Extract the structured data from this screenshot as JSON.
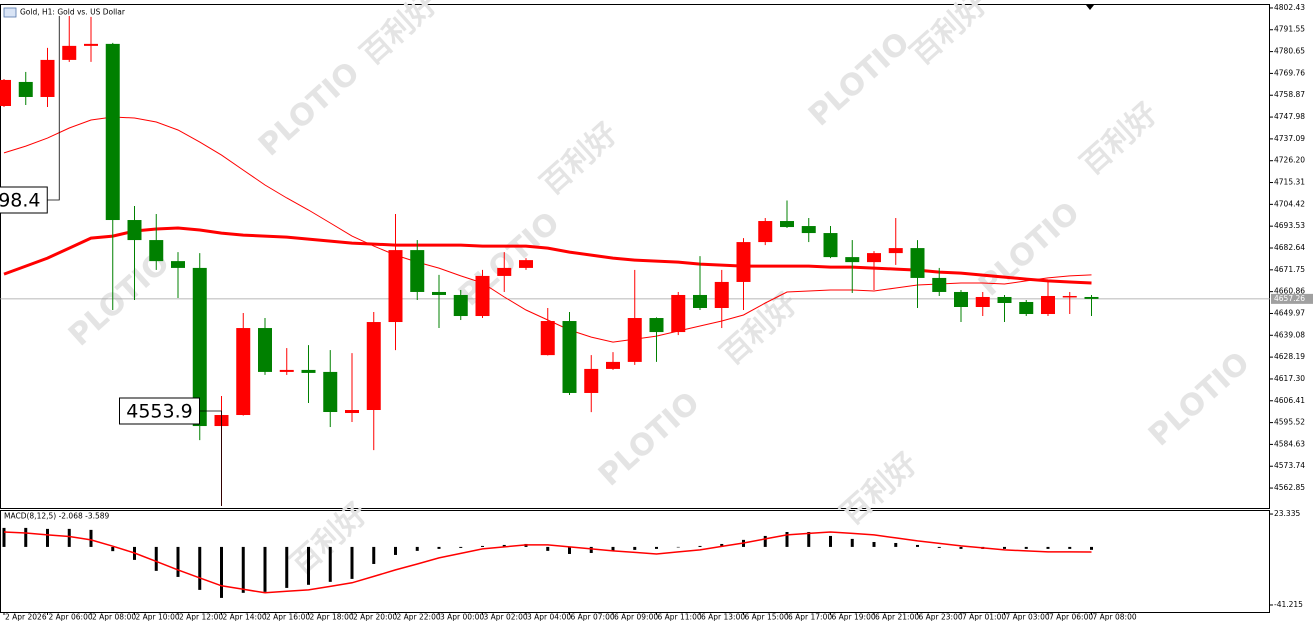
{
  "chart_data": {
    "type": "candlestick",
    "title": "Gold, H1: Gold vs. US Dollar",
    "watermarks": [
      "PLOTIO",
      "百利好"
    ],
    "up_color": "#ff0000",
    "down_color": "#008000",
    "categories": [
      "2 Apr 2026",
      null,
      "2 Apr 06:00",
      null,
      "2 Apr 08:00",
      null,
      "2 Apr 10:00",
      null,
      "2 Apr 12:00",
      null,
      "2 Apr 14:00",
      null,
      "2 Apr 16:00",
      null,
      "2 Apr 18:00",
      null,
      "2 Apr 20:00",
      null,
      "2 Apr 22:00",
      null,
      "3 Apr 00:00",
      null,
      "3 Apr 02:00",
      null,
      "3 Apr 04:00",
      null,
      "6 Apr 07:00",
      null,
      "6 Apr 09:00",
      null,
      "6 Apr 11:00",
      null,
      "6 Apr 13:00",
      null,
      "6 Apr 15:00",
      null,
      "6 Apr 17:00",
      null,
      "6 Apr 19:00",
      null,
      "6 Apr 21:00",
      null,
      "6 Apr 23:00",
      null,
      "7 Apr 01:00",
      null,
      "7 Apr 03:00",
      null,
      "7 Apr 06:00",
      null,
      "7 Apr 08:00"
    ],
    "open": [
      4753.5,
      4765.5,
      4758.0,
      4776.5,
      4783.5,
      4784.5,
      4696.6,
      4686.6,
      4676.1,
      4672.7,
      4593.8,
      4599.3,
      4642.7,
      4620.8,
      4621.8,
      4620.8,
      4600.3,
      4601.8,
      4645.7,
      4681.6,
      4660.7,
      4659.2,
      4648.7,
      4668.7,
      4672.7,
      4629.2,
      4646.2,
      4610.3,
      4622.3,
      4625.8,
      4647.7,
      4640.7,
      4659.2,
      4652.7,
      4665.7,
      4685.6,
      4696.1,
      4693.6,
      4690.1,
      4678.1,
      4675.6,
      4680.1,
      4682.6,
      4667.7,
      4660.7,
      4653.2,
      4658.2,
      4655.7,
      4649.7,
      4658.2,
      4658.2
    ],
    "high": [
      4767,
      4770.5,
      4782.5,
      4798.4,
      4798,
      4785,
      4703.6,
      4699.6,
      4680.6,
      4680.1,
      4608.8,
      4650.2,
      4647.7,
      4632.7,
      4634.2,
      4631.7,
      4630.2,
      4650.7,
      4699.6,
      4686.6,
      4669.2,
      4661.7,
      4671.7,
      4680.6,
      4677.6,
      4652.7,
      4650.7,
      4629.2,
      4630.7,
      4671.7,
      4648,
      4660.7,
      4678.6,
      4671.7,
      4687.6,
      4697.6,
      4706.32,
      4697.6,
      4693.6,
      4686.6,
      4681.1,
      4697.6,
      4686.6,
      4672.7,
      4661.7,
      4660.7,
      4659.2,
      4656.7,
      4666.7,
      4660.7,
      4659.2
    ],
    "low": [
      4753,
      4754.0,
      4753.0,
      4775.5,
      4775.5,
      4651.7,
      4656.7,
      4671.7,
      4657.7,
      4586.8,
      4553.9,
      4599,
      4619.3,
      4619.3,
      4605.3,
      4593.3,
      4595.8,
      4581.8,
      4631.7,
      4656.7,
      4642.7,
      4646.7,
      4647.7,
      4660.7,
      4671.7,
      4629,
      4609.3,
      4600.74,
      4621.8,
      4624.3,
      4625.8,
      4639.2,
      4651.7,
      4642.7,
      4651.7,
      4684.1,
      4692.6,
      4685.6,
      4677.6,
      4660.2,
      4661.7,
      4674.2,
      4652.7,
      4658.7,
      4645.7,
      4648.7,
      4645.7,
      4648.7,
      4648.7,
      4649.7,
      4648.7
    ],
    "close": [
      4766.5,
      4758.0,
      4776.5,
      4783.5,
      4784.5,
      4696.6,
      4686.6,
      4676.1,
      4672.7,
      4593.8,
      4599.3,
      4642.7,
      4620.8,
      4621.8,
      4620.3,
      4600.8,
      4601.8,
      4645.7,
      4681.6,
      4660.7,
      4659.2,
      4648.7,
      4668.7,
      4672.7,
      4676.6,
      4646.2,
      4610.3,
      4622.3,
      4625.8,
      4647.7,
      4640.7,
      4659.2,
      4652.7,
      4665.7,
      4685.6,
      4696.1,
      4693.1,
      4690.1,
      4678.1,
      4675.6,
      4680.1,
      4682.6,
      4667.7,
      4660.7,
      4653.2,
      4658.2,
      4655.2,
      4649.7,
      4658.7,
      4658.7,
      4657.26
    ],
    "moving_averages": [
      {
        "color": "#ff0000",
        "width": 1,
        "values": [
          4730.1,
          4733.5,
          4737.5,
          4742.5,
          4746.5,
          4748.0,
          4747.5,
          4745.5,
          4741.5,
          4735.5,
          4729.0,
          4721.5,
          4714.1,
          4707.6,
          4701.6,
          4695.1,
          4688.6,
          4683.6,
          4679.1,
          4675.6,
          4672.6,
          4668.7,
          4665.2,
          4658.2,
          4651.7,
          4646.7,
          4641.7,
          4638.2,
          4635.7,
          4637.2,
          4638.7,
          4641.2,
          4643.7,
          4646.2,
          4649.2,
          4655.2,
          4660.7,
          4661.2,
          4661.7,
          4661.7,
          4661.2,
          4662.7,
          4664.2,
          4664.7,
          4665.2,
          4665.2,
          4664.7,
          4666.2,
          4667.7,
          4668.7,
          4669.2
        ]
      },
      {
        "color": "#ff0000",
        "width": 3,
        "values": [
          4669.6,
          4673.6,
          4677.6,
          4682.6,
          4687.6,
          4688.6,
          4691.1,
          4692.1,
          4692.6,
          4691.6,
          4690.1,
          4689.1,
          4688.6,
          4688.1,
          4687.1,
          4686.1,
          4685.1,
          4684.6,
          4684.1,
          4684.1,
          4684.1,
          4684.1,
          4683.6,
          4683.6,
          4683.6,
          4682.6,
          4680.6,
          4679.1,
          4677.6,
          4676.6,
          4676.1,
          4675.6,
          4674.6,
          4674.1,
          4673.6,
          4673.6,
          4673.6,
          4673.6,
          4673.1,
          4673.1,
          4672.6,
          4672.1,
          4671.6,
          4670.6,
          4670.1,
          4669.1,
          4668.1,
          4667.1,
          4666.2,
          4665.7,
          4665.2
        ]
      }
    ],
    "ylim": [
      4552.9,
      4803.9
    ],
    "yticks": [
      4802.43,
      4791.55,
      4780.65,
      4769.76,
      4758.87,
      4747.98,
      4737.09,
      {
        "value": 4726.2,
        "label": "4726.20"
      },
      4715.31,
      4704.42,
      4693.53,
      4682.64,
      4671.75,
      4660.86,
      4649.97,
      4639.08,
      4628.19,
      {
        "value": 4617.3,
        "label": "4617.30"
      },
      4606.41,
      4595.52,
      4584.63,
      4573.74,
      4562.85
    ],
    "macd": {
      "title": "MACD(8,12,5) -2.068 -3.589",
      "histogram_color": "#000000",
      "signal_color": "#ff0000",
      "histogram": [
        13.5,
        13.5,
        12.8,
        12.8,
        12.1,
        -3.0,
        -9.2,
        -17,
        -21.3,
        -30.5,
        -36.2,
        -32.6,
        -31.9,
        -29.1,
        -26.9,
        -24.8,
        -22.7,
        -12.1,
        -5.7,
        -2.8,
        -1.4,
        -0.7,
        0.7,
        1.4,
        2.1,
        -2.8,
        -5.0,
        -4.3,
        -2.8,
        -2.1,
        -1.4,
        0,
        0.7,
        2.1,
        5.0,
        7.8,
        10.6,
        10.6,
        7.8,
        5.7,
        3.5,
        2.8,
        1.4,
        -0.7,
        -1.4,
        -1.4,
        -1.4,
        -1.4,
        -1.4,
        -1.4,
        -2.068
      ],
      "signal": [
        10.6,
        9.9,
        8.5,
        7.4,
        5.0,
        0.5,
        -4.3,
        -10.3,
        -16.3,
        -22.0,
        -27.6,
        -30.1,
        -32.6,
        -31.5,
        -30.5,
        -28.0,
        -25.5,
        -20.9,
        -16.3,
        -12.1,
        -7.8,
        -4.6,
        -1.4,
        0,
        1.4,
        1.4,
        0,
        -1.4,
        -2.8,
        -3.9,
        -5.0,
        -3.5,
        -2.1,
        0.4,
        2.8,
        5.7,
        8.5,
        9.6,
        10.6,
        9.6,
        8.5,
        6.4,
        4.3,
        2.5,
        0.7,
        -0.7,
        -2.1,
        -2.8,
        -3.5,
        -3.5,
        -3.589
      ],
      "ylim": [
        -46.2,
        25.5
      ],
      "yticks": [
        23.335,
        -41.215
      ]
    }
  }
}
